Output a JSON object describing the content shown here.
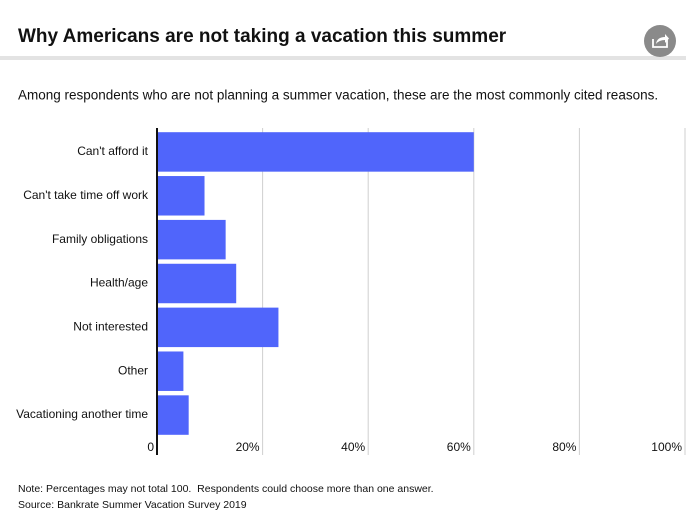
{
  "chart_data": {
    "type": "hbar",
    "title": "Why Americans are not taking a vacation this summer",
    "subtitle": "Among respondents who are not planning a summer vacation, these are the most commonly cited reasons.",
    "categories": [
      "Can't afford it",
      "Can't take time off work",
      "Family obligations",
      "Health/age",
      "Not interested",
      "Other",
      "Vacationing another time"
    ],
    "values": [
      60,
      9,
      13,
      15,
      23,
      5,
      6
    ],
    "color": "#5065fb",
    "xlim": [
      0,
      100
    ],
    "xticks": [
      0,
      {
        "value": 20,
        "label": "20%"
      },
      {
        "value": 40,
        "label": "40%"
      },
      {
        "value": 60,
        "label": "60%"
      },
      {
        "value": 80,
        "label": "80%"
      },
      {
        "value": 100,
        "label": "100%"
      }
    ],
    "grid": true,
    "note": "Note: Percentages may not total 100.  Respondents could choose more than one answer.",
    "source": "Source: Bankrate Summer Vacation Survey 2019"
  }
}
